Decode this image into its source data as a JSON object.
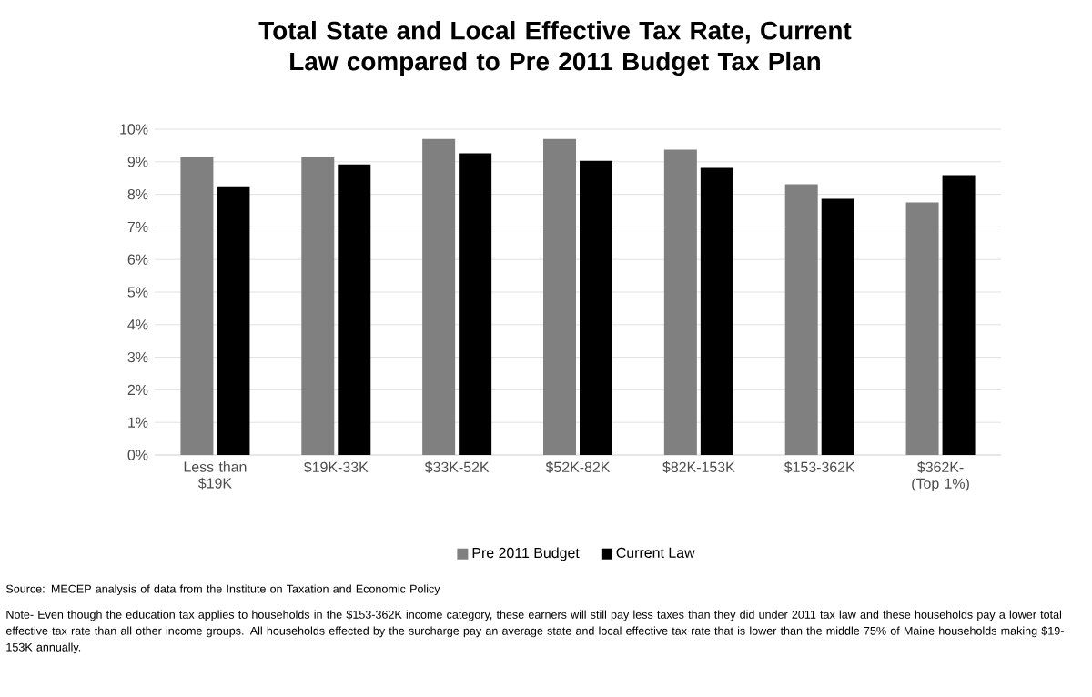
{
  "chart_data": {
    "type": "bar",
    "title": "Total State and Local Effective Tax Rate, Current Law compared to Pre 2011 Budget Tax Plan",
    "categories": [
      "Less than $19K",
      "$19K-33K",
      "$33K-52K",
      "$52K-82K",
      "$82K-153K",
      "$153-362K",
      "$362K- (Top 1%)"
    ],
    "series": [
      {
        "name": "Pre 2011 Budget",
        "color": "#808080",
        "values": [
          9.14,
          9.14,
          9.7,
          9.7,
          9.37,
          8.31,
          7.75
        ]
      },
      {
        "name": "Current Law",
        "color": "#000000",
        "values": [
          8.25,
          8.92,
          9.26,
          9.03,
          8.81,
          7.86,
          8.59
        ]
      }
    ],
    "ylim": [
      0,
      10
    ],
    "yticks": [
      {
        "value": 0,
        "label": "0%"
      },
      {
        "value": 1,
        "label": "1%"
      },
      {
        "value": 2,
        "label": "2%"
      },
      {
        "value": 3,
        "label": "3%"
      },
      {
        "value": 4,
        "label": "4%"
      },
      {
        "value": 5,
        "label": "5%"
      },
      {
        "value": 6,
        "label": "6%"
      },
      {
        "value": 7,
        "label": "7%"
      },
      {
        "value": 8,
        "label": "8%"
      },
      {
        "value": 9,
        "label": "9%"
      },
      {
        "value": 10,
        "label": "10%"
      }
    ],
    "grid": "y",
    "legend": "bottom",
    "annotations": [
      "Source: MECEP analysis of data from the Institute on Taxation and Economic Policy",
      "Note- Even though the education tax applies to households in the $153-362K income category, these earners will still pay less taxes than they did under 2011 tax law and these households pay a lower total effective tax rate than all other income groups. All households effected by the surcharge pay an average state and local effective tax rate that is lower than the middle 75% of Maine households making $19-153K annually."
    ]
  }
}
